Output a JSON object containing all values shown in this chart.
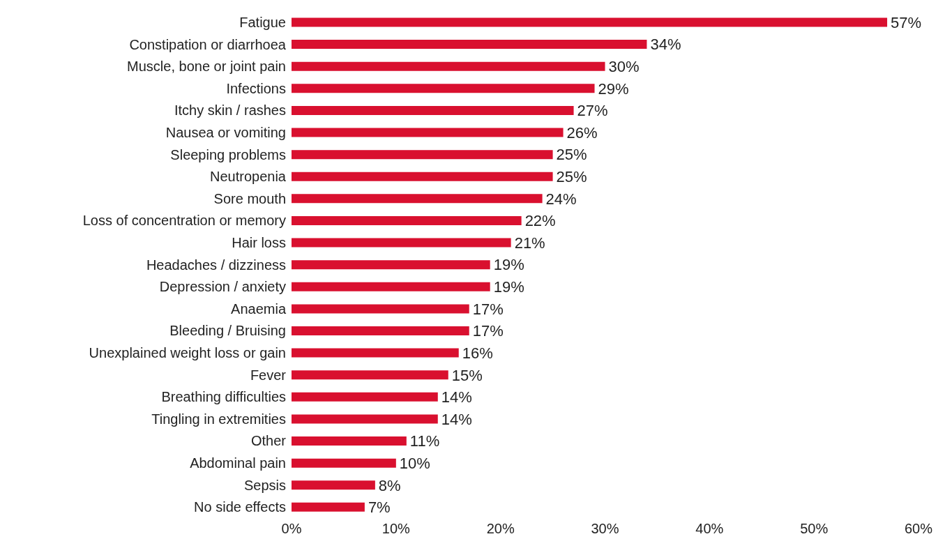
{
  "chart_data": {
    "type": "bar",
    "orientation": "horizontal",
    "categories": [
      "Fatigue",
      "Constipation or diarrhoea",
      "Muscle, bone or joint pain",
      "Infections",
      "Itchy skin / rashes",
      "Nausea or vomiting",
      "Sleeping problems",
      "Neutropenia",
      "Sore mouth",
      "Loss of concentration or memory",
      "Hair loss",
      "Headaches / dizziness",
      "Depression / anxiety",
      "Anaemia",
      "Bleeding / Bruising",
      "Unexplained weight loss or gain",
      "Fever",
      "Breathing difficulties",
      "Tingling in extremities",
      "Other",
      "Abdominal pain",
      "Sepsis",
      "No side effects"
    ],
    "values": [
      57,
      34,
      30,
      29,
      27,
      26,
      25,
      25,
      24,
      22,
      21,
      19,
      19,
      17,
      17,
      16,
      15,
      14,
      14,
      11,
      10,
      8,
      7
    ],
    "value_labels": [
      "57%",
      "34%",
      "30%",
      "29%",
      "27%",
      "26%",
      "25%",
      "25%",
      "24%",
      "22%",
      "21%",
      "19%",
      "19%",
      "17%",
      "17%",
      "16%",
      "15%",
      "14%",
      "14%",
      "11%",
      "10%",
      "8%",
      "7%"
    ],
    "color": "#d9102f",
    "xlim": [
      0,
      60
    ],
    "xticks": [
      {
        "value": 0,
        "label": "0%"
      },
      {
        "value": 10,
        "label": "10%"
      },
      {
        "value": 20,
        "label": "20%"
      },
      {
        "value": 30,
        "label": "30%"
      },
      {
        "value": 40,
        "label": "40%"
      },
      {
        "value": 50,
        "label": "50%"
      },
      {
        "value": 60,
        "label": "60%"
      }
    ],
    "legend": false
  }
}
